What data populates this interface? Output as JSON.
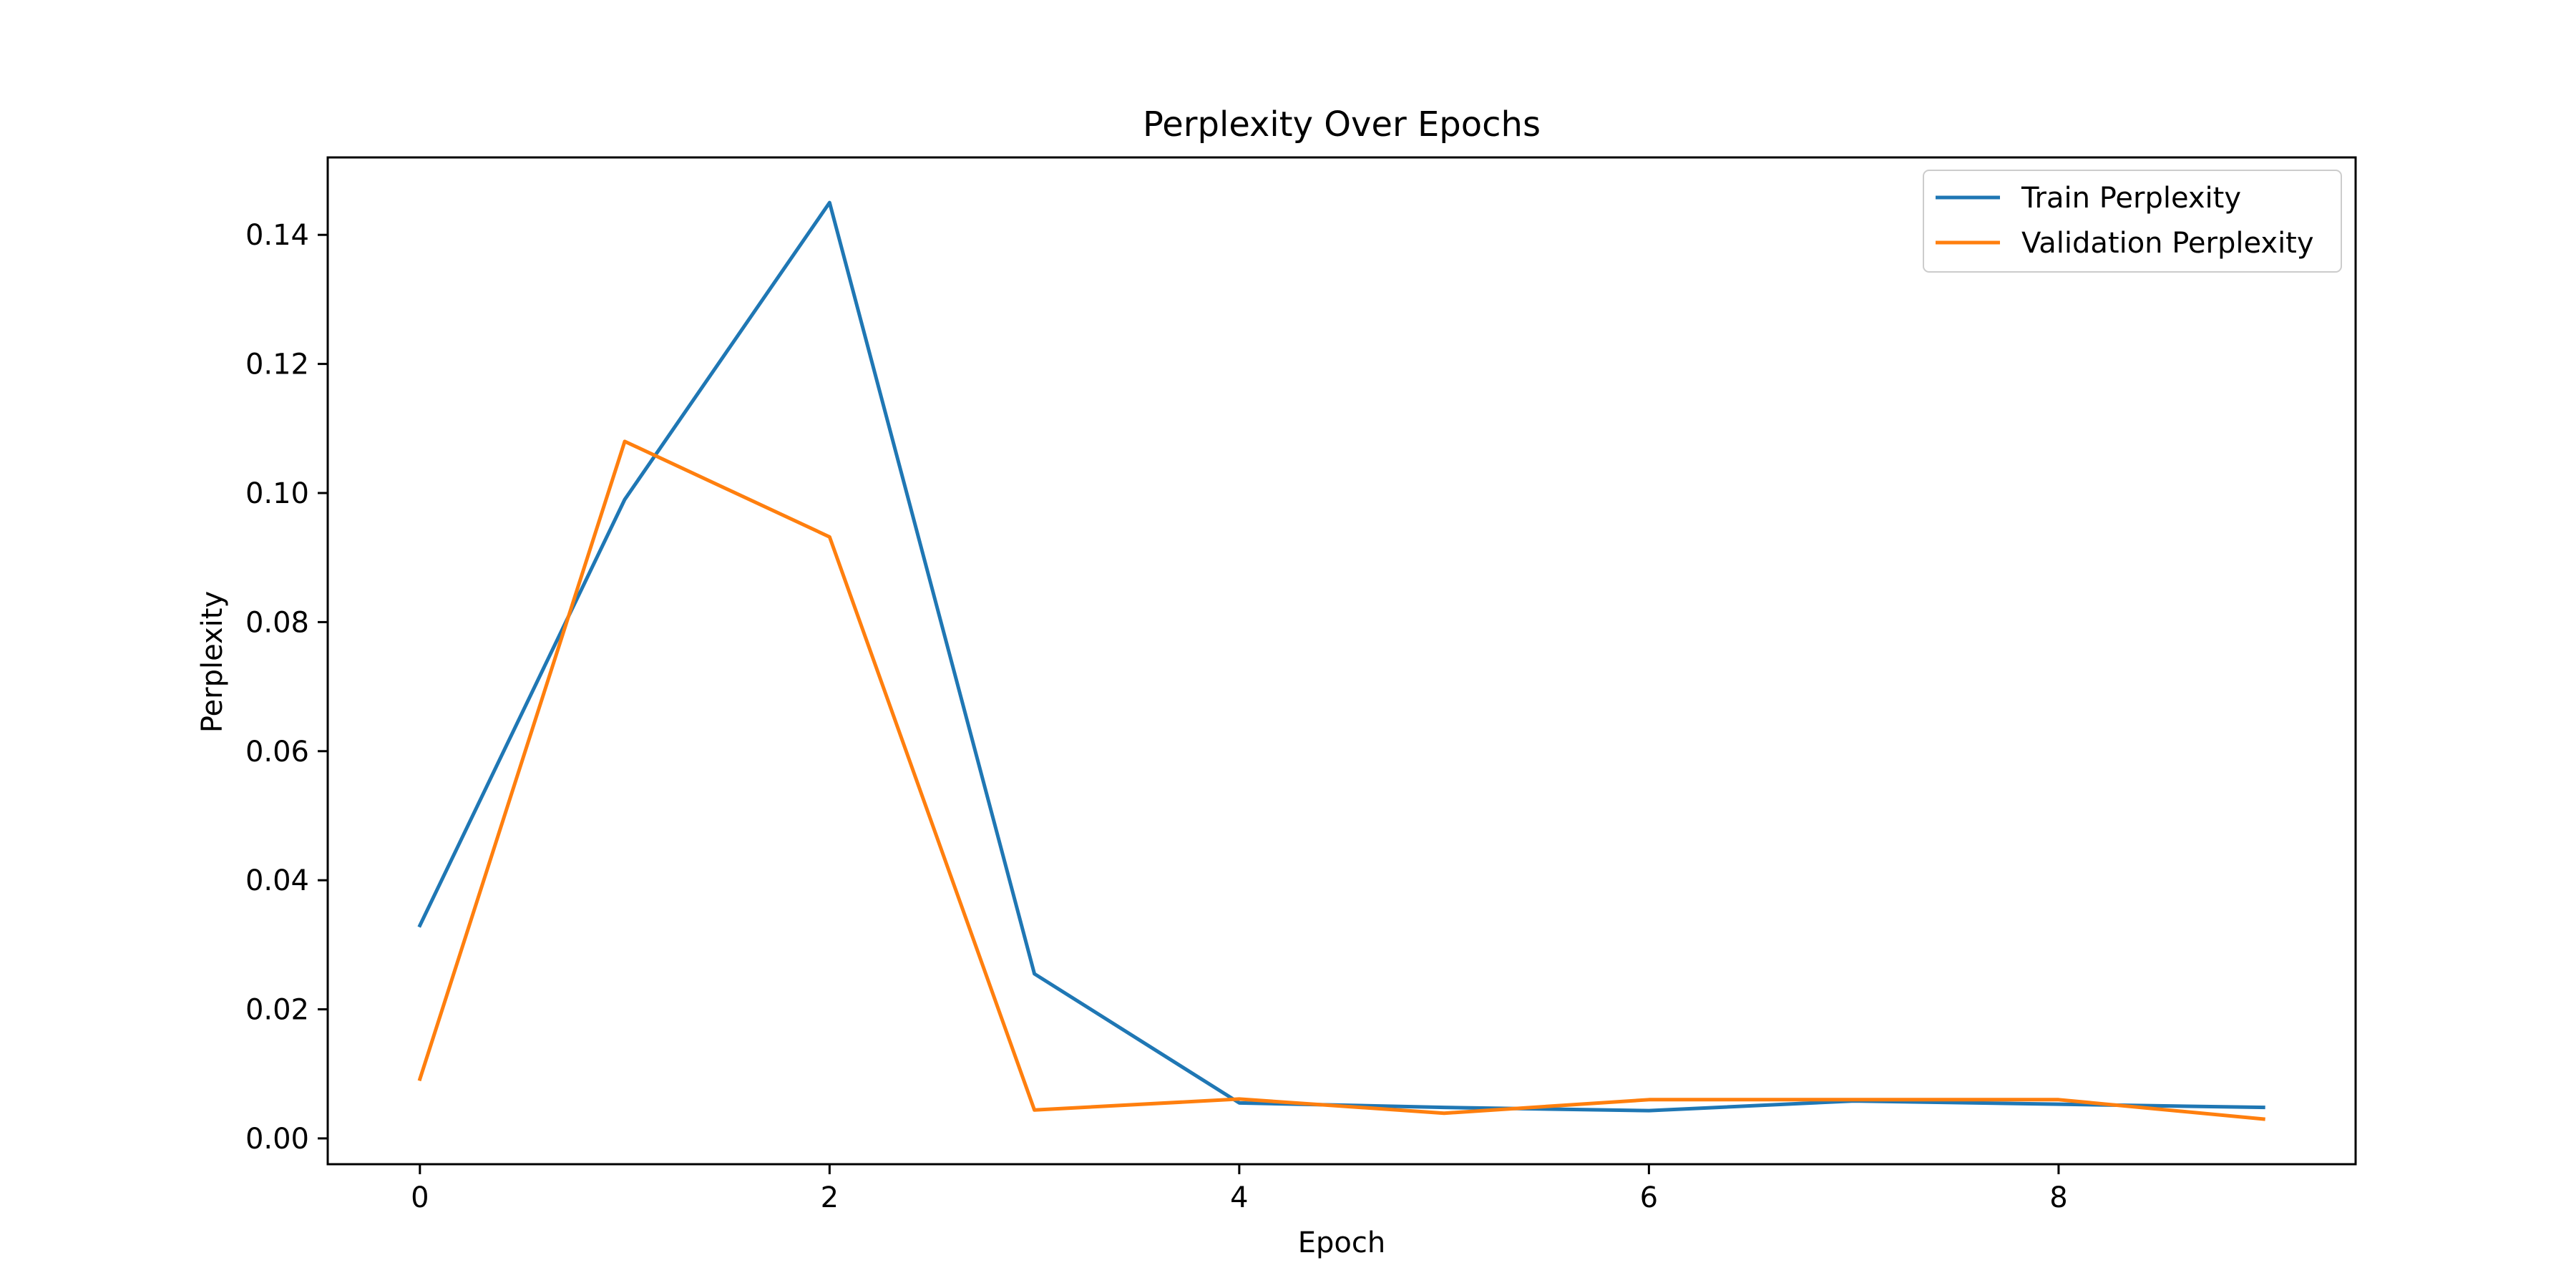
{
  "chart_data": {
    "type": "line",
    "title": "Perplexity Over Epochs",
    "xlabel": "Epoch",
    "ylabel": "Perplexity",
    "x": [
      0,
      1,
      2,
      3,
      4,
      5,
      6,
      7,
      8,
      9
    ],
    "xlim": [
      -0.45,
      9.45
    ],
    "ylim": [
      -0.004,
      0.152
    ],
    "xticks": [
      0,
      2,
      4,
      6,
      8
    ],
    "yticks": [
      0.0,
      0.02,
      0.04,
      0.06,
      0.08,
      0.1,
      0.12,
      0.14
    ],
    "ytick_labels": [
      "0.00",
      "0.02",
      "0.04",
      "0.06",
      "0.08",
      "0.10",
      "0.12",
      "0.14"
    ],
    "grid": false,
    "legend_position": "top-right",
    "series": [
      {
        "name": "Train Perplexity",
        "color": "#1f77b4",
        "values": [
          0.033,
          0.099,
          0.145,
          0.0255,
          0.0055,
          0.0048,
          0.0043,
          0.0058,
          0.0053,
          0.0048
        ]
      },
      {
        "name": "Validation Perplexity",
        "color": "#ff7f0e",
        "values": [
          0.0092,
          0.108,
          0.0932,
          0.0044,
          0.0061,
          0.0039,
          0.006,
          0.006,
          0.006,
          0.003
        ]
      }
    ]
  }
}
